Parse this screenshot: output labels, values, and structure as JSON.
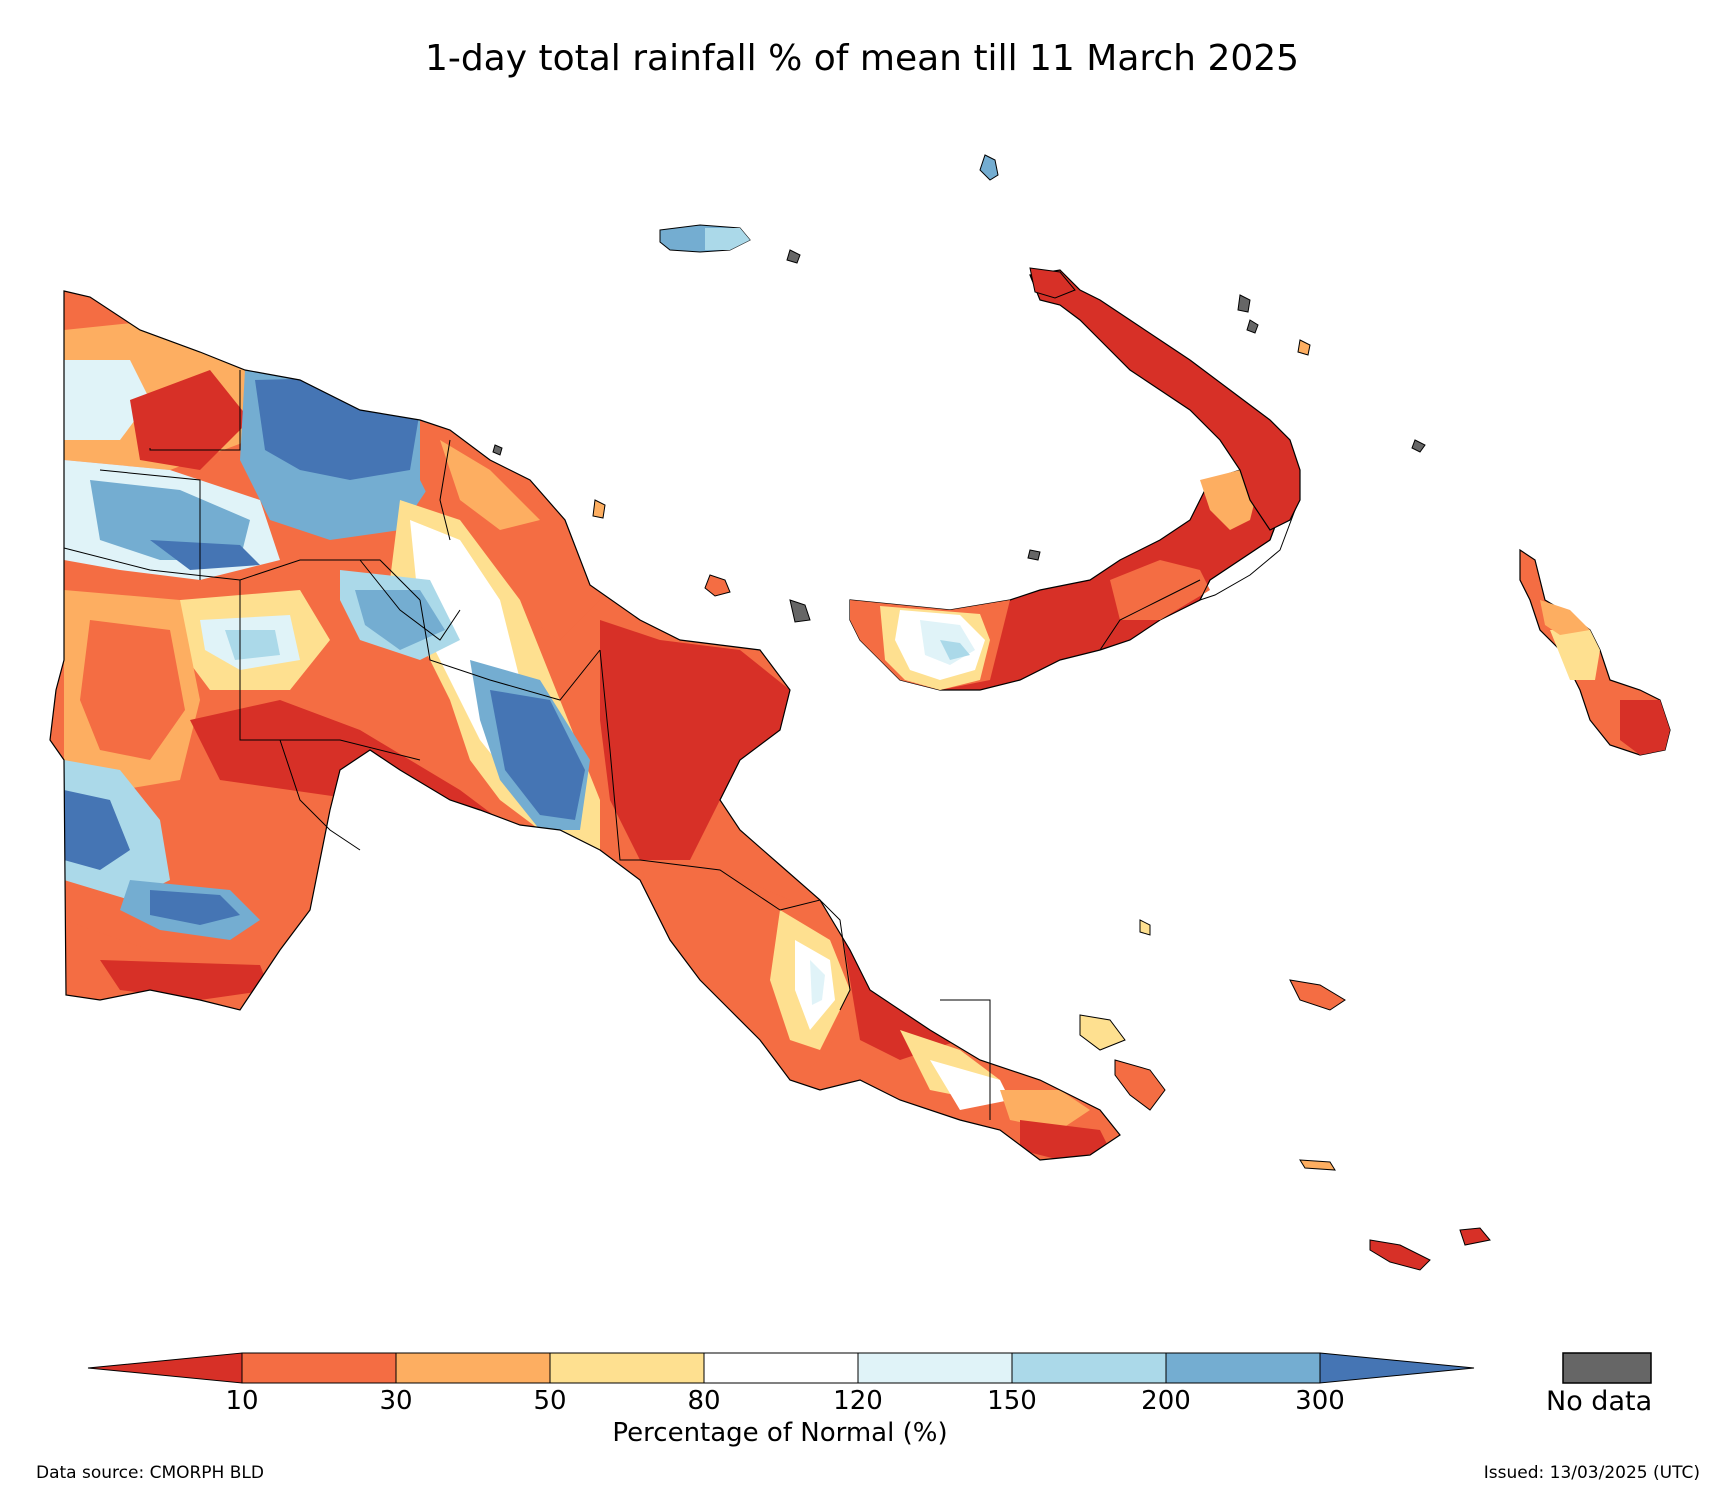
{
  "title": "1-day total rainfall % of mean till 11 March 2025",
  "colorbar": {
    "label": "Percentage of Normal (%)",
    "ticks": [
      "10",
      "30",
      "50",
      "80",
      "120",
      "150",
      "200",
      "300"
    ],
    "bins": [
      {
        "range": "<10",
        "color": "#d73027"
      },
      {
        "range": "10-30",
        "color": "#f46d43"
      },
      {
        "range": "30-50",
        "color": "#fdae61"
      },
      {
        "range": "50-80",
        "color": "#fee090"
      },
      {
        "range": "80-120",
        "color": "#ffffff"
      },
      {
        "range": "120-150",
        "color": "#e0f3f8"
      },
      {
        "range": "150-200",
        "color": "#abd9e9"
      },
      {
        "range": "200-300",
        "color": "#74add1"
      },
      {
        "range": ">300",
        "color": "#4575b4"
      }
    ],
    "nodata_label": "No data",
    "nodata_color": "#666666"
  },
  "footer": {
    "source": "Data source: CMORPH BLD",
    "issued": "Issued: 13/03/2025 (UTC)"
  }
}
